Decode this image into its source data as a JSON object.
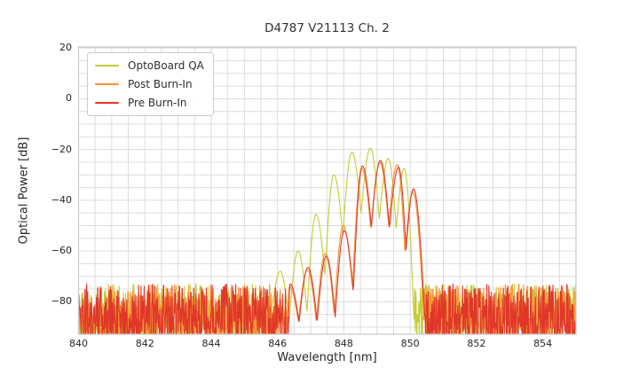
{
  "figure": {
    "kind": "matplotlib-spectrum-figure"
  },
  "chart_data": {
    "type": "line",
    "title": "D4787 V21113 Ch. 2",
    "xlabel": "Wavelength [nm]",
    "ylabel": "Optical Power [dB]",
    "xlim": [
      840,
      855
    ],
    "ylim": [
      -92.8,
      20.4
    ],
    "xticks": [
      840,
      842,
      844,
      846,
      848,
      850,
      852,
      854
    ],
    "yticks": [
      20,
      0,
      -20,
      -40,
      -60,
      -80
    ],
    "grid": {
      "visible": true,
      "x_minor_step_nm": 0.5,
      "y_minor_step_db": 5,
      "color": "#dcdcdc",
      "spine_color": "#c9c9c9"
    },
    "legend": {
      "position": "upper-left",
      "background": "#ffffff",
      "border_color": "#cccccc"
    },
    "plot_background": "#ffffff",
    "series": [
      {
        "name": "OptoBoard QA",
        "color": "#c4cc38",
        "signal_domain_nm": [
          845.78,
          850.12
        ],
        "peaks_nm_db": [
          [
            846.08,
            -68.0
          ],
          [
            846.62,
            -60.0
          ],
          [
            847.16,
            -45.5
          ],
          [
            847.7,
            -30.0
          ],
          [
            848.24,
            -21.0
          ],
          [
            848.8,
            -19.5
          ],
          [
            849.34,
            -23.5
          ],
          [
            849.82,
            -27.5
          ]
        ],
        "valley_drop_db": 24,
        "valley_floor_db": -88,
        "noise_floor_db": {
          "min": -96,
          "max": -73
        },
        "noise_bias": 1.3,
        "noise_seed": 42
      },
      {
        "name": "Post Burn-In",
        "color": "#f79433",
        "signal_domain_nm": [
          846.3,
          850.42
        ],
        "peaks_nm_db": [
          [
            846.36,
            -74.0
          ],
          [
            846.9,
            -67.5
          ],
          [
            847.44,
            -61.0
          ],
          [
            847.98,
            -50.0
          ],
          [
            848.54,
            -27.5
          ],
          [
            849.09,
            -25.2
          ],
          [
            849.61,
            -26.0
          ],
          [
            850.08,
            -37.0
          ]
        ],
        "valley_drop_db": 24,
        "valley_floor_db": -88,
        "noise_floor_db": {
          "min": -96,
          "max": -73
        },
        "noise_bias": 1.3,
        "noise_seed": 1337
      },
      {
        "name": "Pre Burn-In",
        "color": "#e0372a",
        "signal_domain_nm": [
          846.33,
          850.45
        ],
        "peaks_nm_db": [
          [
            846.38,
            -73.0
          ],
          [
            846.92,
            -66.5
          ],
          [
            847.47,
            -62.0
          ],
          [
            848.01,
            -52.0
          ],
          [
            848.56,
            -26.5
          ],
          [
            849.1,
            -24.3
          ],
          [
            849.65,
            -27.0
          ],
          [
            850.1,
            -35.5
          ]
        ],
        "valley_drop_db": 24,
        "valley_floor_db": -88,
        "noise_floor_db": {
          "min": -96,
          "max": -73
        },
        "noise_bias": 1.3,
        "noise_seed": 2024
      }
    ]
  }
}
